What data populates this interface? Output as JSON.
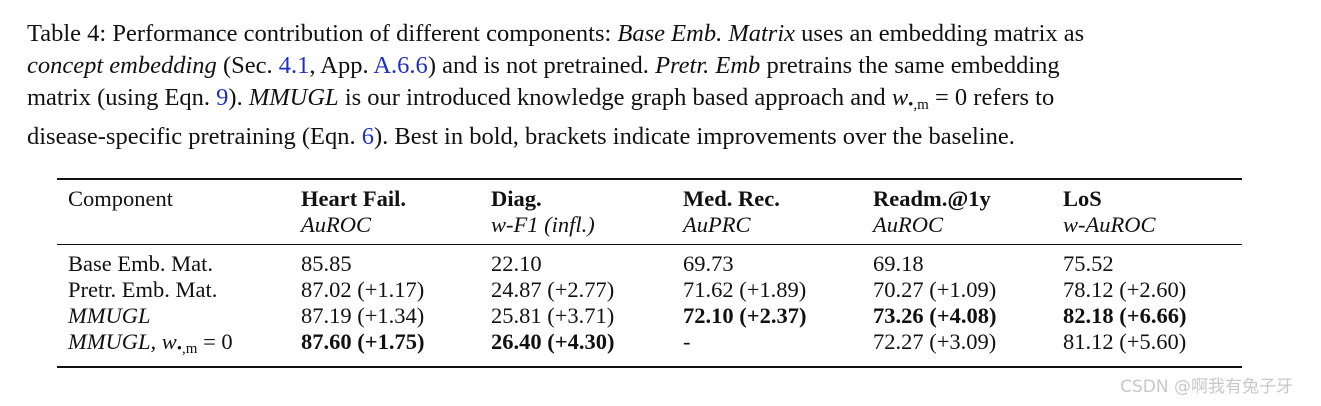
{
  "caption": {
    "line1": [
      "Table 4: Performance contribution of different components: ",
      "Base Emb. Matrix",
      " uses an embedding matrix as"
    ],
    "line2": [
      "concept embedding",
      " (Sec. ",
      "4.1",
      ", App. ",
      "A.6.6",
      ") and is not pretrained. ",
      "Pretr. Emb",
      " pretrains the same embedding"
    ],
    "line3": [
      "matrix (using Eqn. ",
      "9",
      "). ",
      "MMUGL",
      " is our introduced knowledge graph based approach and ",
      "w",
      "•,m",
      " = 0",
      " refers to"
    ],
    "line4": [
      "disease-specific pretraining (Eqn. ",
      "6",
      "). Best in bold, brackets indicate improvements over the baseline."
    ]
  },
  "table": {
    "header": {
      "component": "Component",
      "columns": [
        {
          "name": "Heart Fail.",
          "metric": "AuROC"
        },
        {
          "name": "Diag.",
          "metric": "w-F1 (infl.)"
        },
        {
          "name": "Med. Rec.",
          "metric": "AuPRC"
        },
        {
          "name": "Readm.@1y",
          "metric": "AuROC"
        },
        {
          "name": "LoS",
          "metric": "w-AuROC"
        }
      ]
    },
    "rows": [
      {
        "label": [
          "Base Emb. Mat."
        ],
        "cells": [
          "85.85",
          "22.10",
          "69.73",
          "69.18",
          "75.52"
        ]
      },
      {
        "label": [
          "Pretr. Emb. Mat."
        ],
        "cells": [
          "87.02 (+1.17)",
          "24.87 (+2.77)",
          "71.62 (+1.89)",
          "70.27 (+1.09)",
          "78.12 (+2.60)"
        ]
      },
      {
        "label": [
          "MMUGL"
        ],
        "cells": [
          "87.19 (+1.34)",
          "25.81 (+3.71)",
          "72.10 (+2.37)",
          "73.26 (+4.08)",
          "82.18 (+6.66)"
        ]
      },
      {
        "label": [
          "MMUGL, w",
          "•,m",
          " = 0"
        ],
        "cells": [
          "87.60 (+1.75)",
          "26.40 (+4.30)",
          "-",
          "72.27 (+3.09)",
          "81.12 (+5.60)"
        ]
      }
    ]
  },
  "watermark": "CSDN @啊我有兔子牙"
}
